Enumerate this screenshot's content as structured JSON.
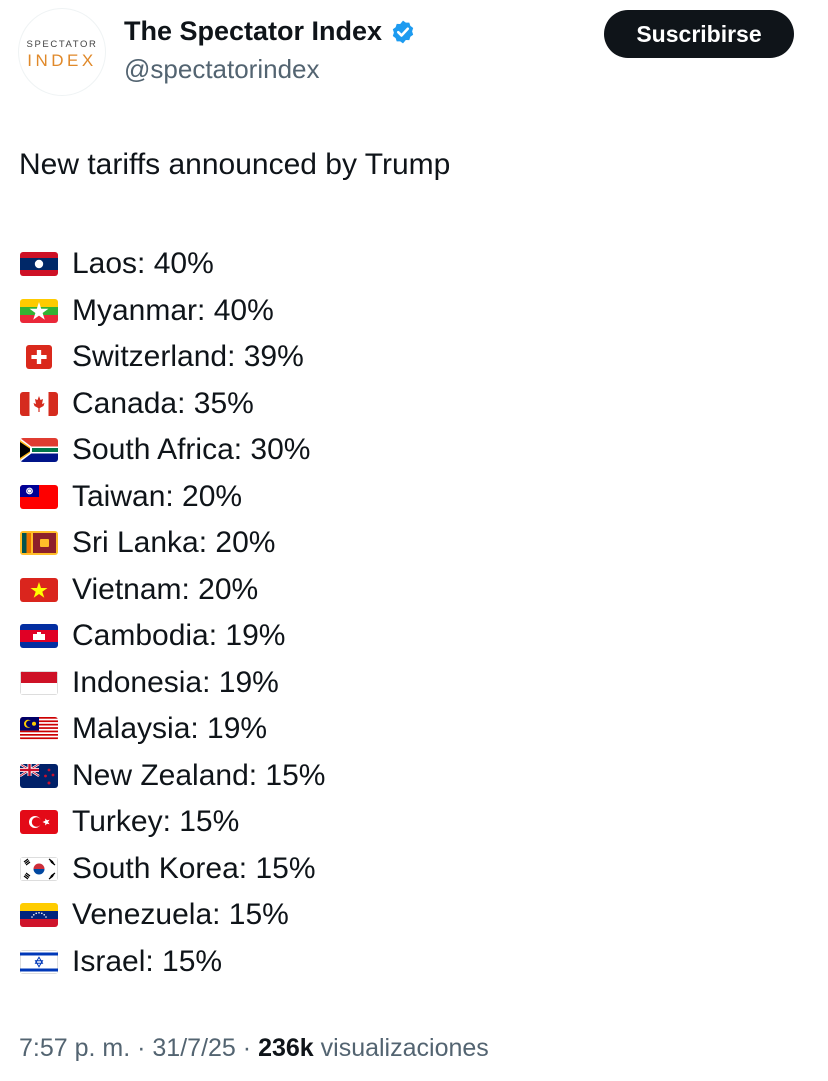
{
  "account": {
    "avatar_line1": "SPECTATOR",
    "avatar_line2": "INDEX",
    "display_name": "The Spectator Index",
    "handle": "@spectatorindex",
    "subscribe_label": "Suscribirse"
  },
  "post": {
    "text": "New tariffs announced by Trump",
    "items": [
      {
        "flag": "laos-flag-icon",
        "text": "Laos: 40%"
      },
      {
        "flag": "myanmar-flag-icon",
        "text": "Myanmar: 40%"
      },
      {
        "flag": "switzerland-flag-icon",
        "text": "Switzerland: 39%"
      },
      {
        "flag": "canada-flag-icon",
        "text": "Canada: 35%"
      },
      {
        "flag": "south-africa-flag-icon",
        "text": "South Africa: 30%"
      },
      {
        "flag": "taiwan-flag-icon",
        "text": "Taiwan: 20%"
      },
      {
        "flag": "sri-lanka-flag-icon",
        "text": "Sri Lanka: 20%"
      },
      {
        "flag": "vietnam-flag-icon",
        "text": "Vietnam: 20%"
      },
      {
        "flag": "cambodia-flag-icon",
        "text": "Cambodia: 19%"
      },
      {
        "flag": "indonesia-flag-icon",
        "text": "Indonesia: 19%"
      },
      {
        "flag": "malaysia-flag-icon",
        "text": "Malaysia: 19%"
      },
      {
        "flag": "new-zealand-flag-icon",
        "text": "New Zealand: 15%"
      },
      {
        "flag": "turkey-flag-icon",
        "text": "Turkey: 15%"
      },
      {
        "flag": "south-korea-flag-icon",
        "text": "South Korea: 15%"
      },
      {
        "flag": "venezuela-flag-icon",
        "text": "Venezuela: 15%"
      },
      {
        "flag": "israel-flag-icon",
        "text": "Israel: 15%"
      }
    ]
  },
  "meta": {
    "time": "7:57 p. m.",
    "separator": "·",
    "date": "31/7/25",
    "views_count": "236k",
    "views_label": "visualizaciones"
  },
  "colors": {
    "text": "#0f1419",
    "secondary": "#536471",
    "verified": "#1d9bf0",
    "button_bg": "#0f1419",
    "avatar_accent": "#e0892a"
  }
}
